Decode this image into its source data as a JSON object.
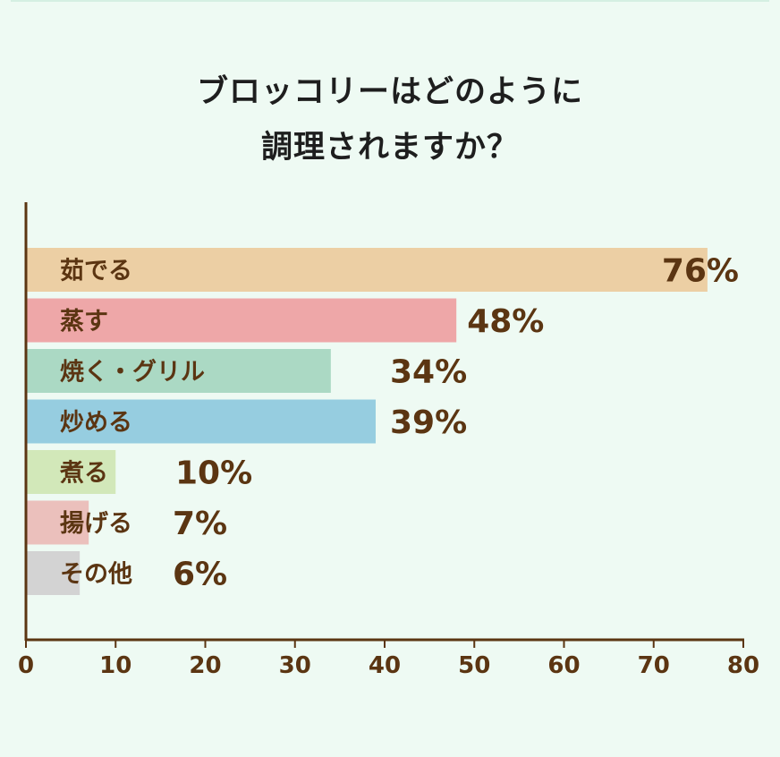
{
  "title": {
    "line1": "ブロッコリーはどのように",
    "line2": "調理されますか？"
  },
  "chart_data": {
    "type": "bar",
    "orientation": "horizontal",
    "title": "ブロッコリーはどのように調理されますか？",
    "categories": [
      "茹でる",
      "蒸す",
      "焼く・グリル",
      "炒める",
      "煮る",
      "揚げる",
      "その他"
    ],
    "values": [
      76,
      48,
      34,
      39,
      10,
      7,
      6
    ],
    "value_labels": [
      "76%",
      "48%",
      "34%",
      "39%",
      "10%",
      "7%",
      "6%"
    ],
    "colors": [
      "#eccfa4",
      "#eea7a8",
      "#abd9c4",
      "#96cde0",
      "#d2e8b9",
      "#ebc0bc",
      "#d3d3d3"
    ],
    "xlim": [
      0,
      80
    ],
    "xticks": [
      0,
      10,
      20,
      30,
      40,
      50,
      60,
      70,
      80
    ],
    "xlabel": "",
    "ylabel": "",
    "grid": false,
    "legend": "none"
  }
}
